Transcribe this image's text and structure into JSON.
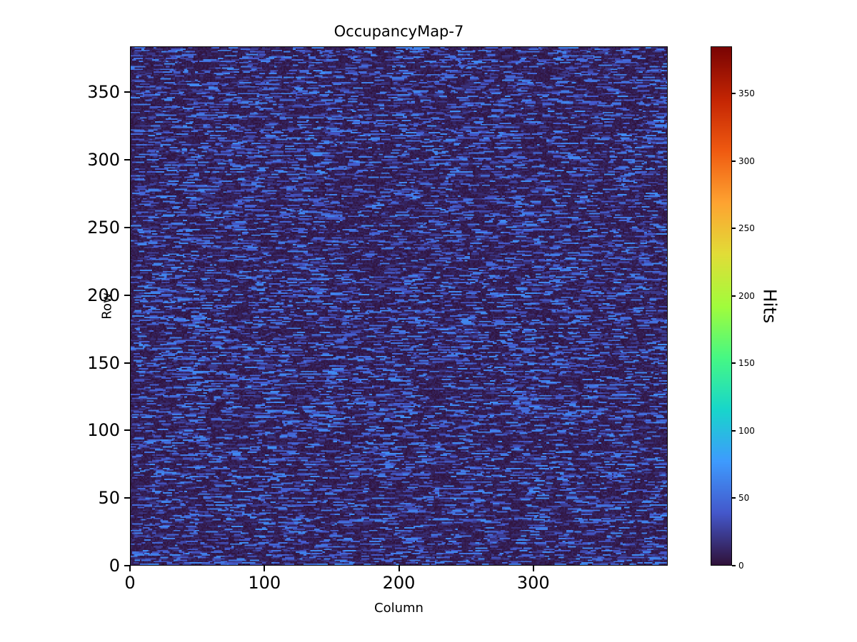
{
  "figure": {
    "title": "OccupancyMap-7",
    "xlabel": "Column",
    "ylabel": "Row"
  },
  "chart_data": {
    "type": "heatmap",
    "title": "OccupancyMap-7",
    "xlabel": "Column",
    "ylabel": "Row",
    "x_range": [
      0,
      400
    ],
    "y_range": [
      0,
      384
    ],
    "x_ticks": [
      0,
      100,
      200,
      300
    ],
    "y_ticks": [
      0,
      50,
      100,
      150,
      200,
      250,
      300,
      350
    ],
    "colorbar": {
      "label": "Hits",
      "ticks": [
        0,
        50,
        100,
        150,
        200,
        250,
        300,
        350
      ],
      "vmin": 0,
      "vmax": 385
    },
    "colormap": {
      "name": "turbo",
      "stops": [
        {
          "t": 0.0,
          "color": "#30123b"
        },
        {
          "t": 0.1,
          "color": "#4458cb"
        },
        {
          "t": 0.2,
          "color": "#3e9bfe"
        },
        {
          "t": 0.3,
          "color": "#18d6cb"
        },
        {
          "t": 0.4,
          "color": "#46f884"
        },
        {
          "t": 0.5,
          "color": "#a2fc3c"
        },
        {
          "t": 0.6,
          "color": "#e1dd37"
        },
        {
          "t": 0.7,
          "color": "#fea331"
        },
        {
          "t": 0.8,
          "color": "#ef5a11"
        },
        {
          "t": 0.9,
          "color": "#c42503"
        },
        {
          "t": 1.0,
          "color": "#7a0403"
        }
      ]
    },
    "data_description": "Sparse random occupancy map: background hit counts near 0 render as very dark navy/purple; short horizontal dashes of roughly 15-70 hits render as dim to bright blue, scattered uniformly across all rows and columns. No cell visibly exceeds ~80 hits even though the colorbar scale spans 0 to ~385.",
    "noise_model": {
      "seed": 7,
      "background_min": 0,
      "background_max": 12,
      "bright_dashes_per_row_min": 10,
      "bright_dashes_per_row_max": 34,
      "bright_dash_len_min": 2,
      "bright_dash_len_max": 9,
      "bright_value_min": 30,
      "bright_value_max": 70,
      "dim_dashes_per_row_min": 8,
      "dim_dashes_per_row_max": 30,
      "dim_dash_len_min": 2,
      "dim_dash_len_max": 7,
      "dim_value_min": 14,
      "dim_value_max": 28
    }
  }
}
